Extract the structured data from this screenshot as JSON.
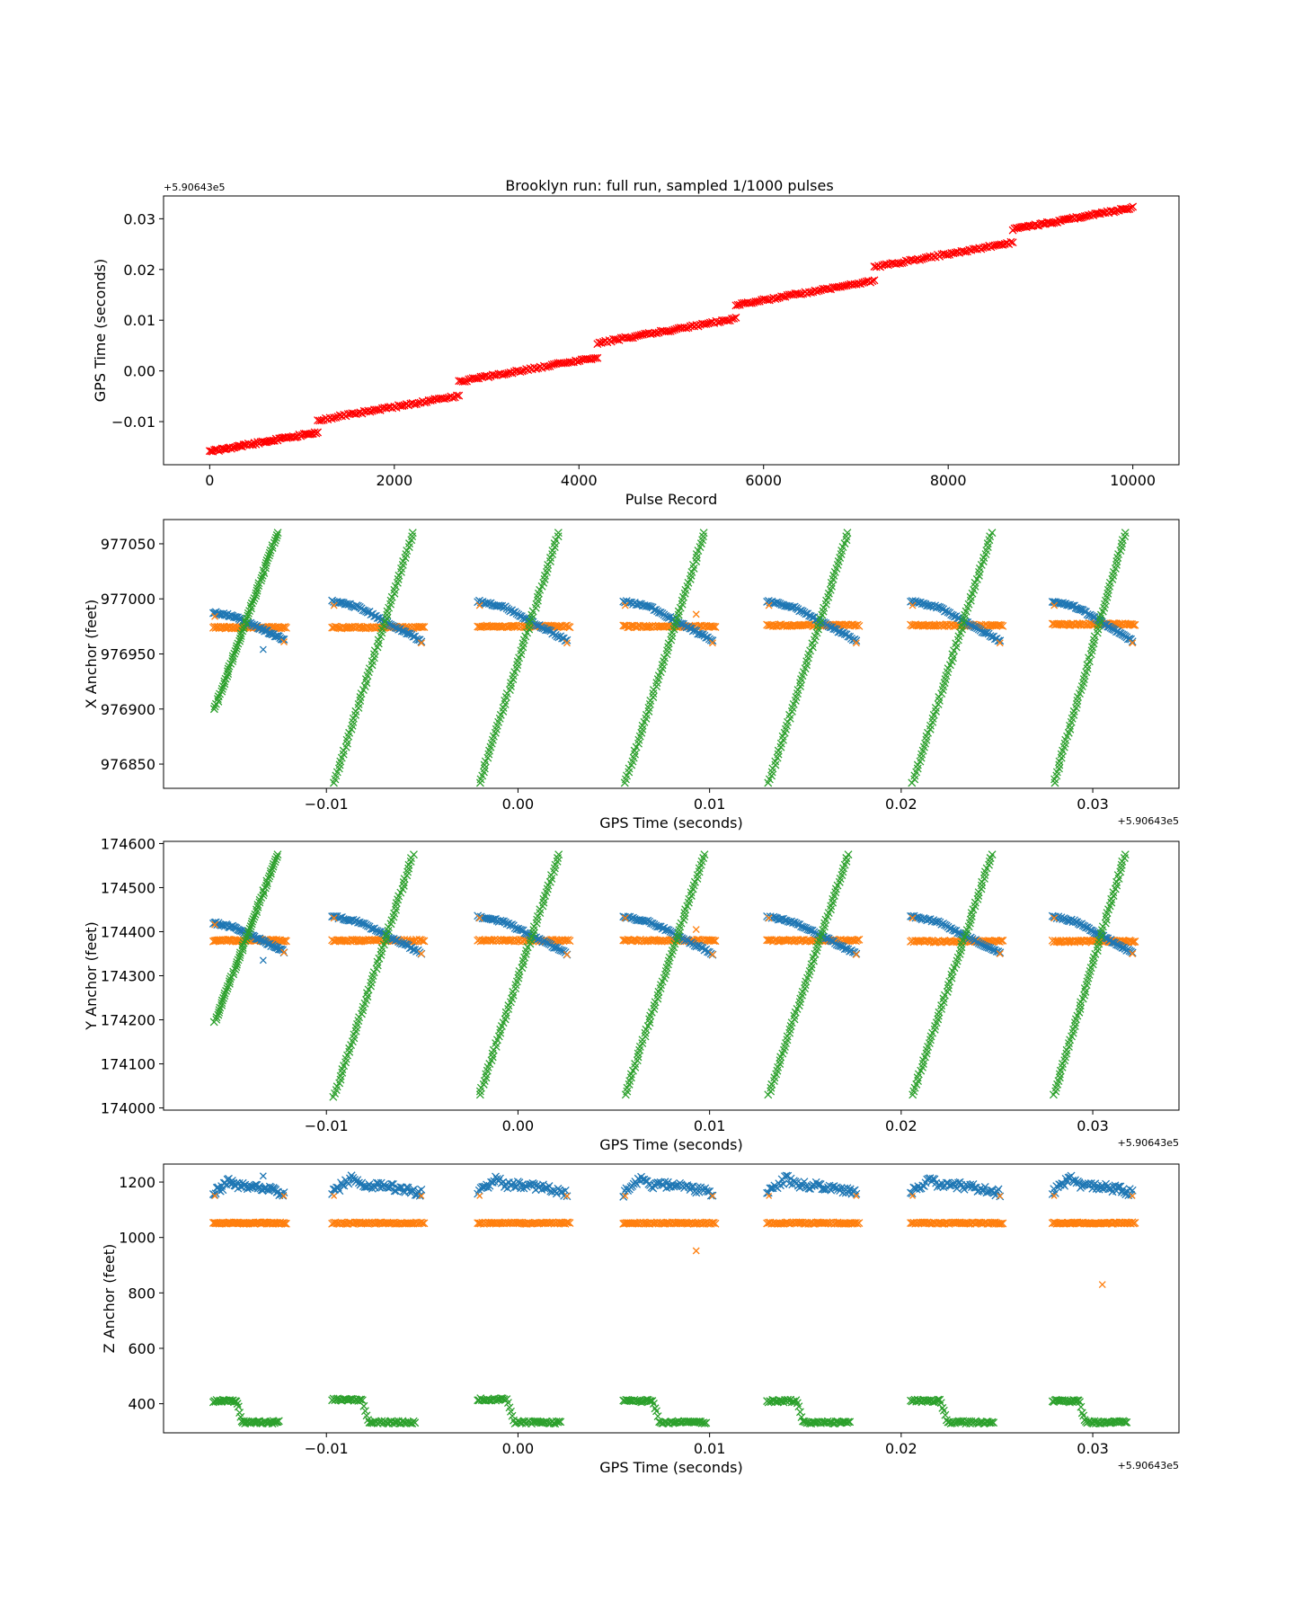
{
  "figure": {
    "title": "Brooklyn run: full run, sampled 1/1000 pulses"
  },
  "chart_data": [
    {
      "type": "scatter",
      "title": "Brooklyn run: full run, sampled 1/1000 pulses",
      "xlabel": "Pulse Record",
      "ylabel": "GPS Time (seconds)",
      "offset_label": "+5.90643e5",
      "offset_position": "top-left",
      "xlim": [
        -500,
        10500
      ],
      "ylim": [
        -0.0185,
        0.0345
      ],
      "xticks": [
        0,
        2000,
        4000,
        6000,
        8000,
        10000
      ],
      "xtick_labels": [
        "0",
        "2000",
        "4000",
        "6000",
        "8000",
        "10000"
      ],
      "yticks": [
        -0.01,
        0.0,
        0.01,
        0.02,
        0.03
      ],
      "ytick_labels": [
        "−0.01",
        "0.00",
        "0.01",
        "0.02",
        "0.03"
      ],
      "marker": "x",
      "grid": false,
      "series": [
        {
          "color": "#ff0000",
          "segments": [
            {
              "x": [
                0,
                1170
              ],
              "y": [
                -0.0159,
                -0.0121
              ]
            },
            {
              "x": [
                1170,
                2700
              ],
              "y": [
                -0.0097,
                -0.0049
              ]
            },
            {
              "x": [
                2700,
                4200
              ],
              "y": [
                -0.0021,
                0.0027
              ]
            },
            {
              "x": [
                4200,
                5700
              ],
              "y": [
                0.0055,
                0.0103
              ]
            },
            {
              "x": [
                5700,
                7200
              ],
              "y": [
                0.013,
                0.0178
              ]
            },
            {
              "x": [
                7200,
                8700
              ],
              "y": [
                0.0205,
                0.0253
              ]
            },
            {
              "x": [
                8700,
                10000
              ],
              "y": [
                0.0279,
                0.0322
              ]
            }
          ]
        }
      ]
    },
    {
      "type": "scatter",
      "xlabel": "GPS Time (seconds)",
      "ylabel": "X Anchor (feet)",
      "offset_label": "+5.90643e5",
      "offset_position": "bottom-right",
      "xlim": [
        -0.0185,
        0.0345
      ],
      "ylim": [
        976828,
        977072
      ],
      "xticks": [
        -0.01,
        0.0,
        0.01,
        0.02,
        0.03
      ],
      "xtick_labels": [
        "−0.01",
        "0.00",
        "0.01",
        "0.02",
        "0.03"
      ],
      "yticks": [
        976850,
        976900,
        976950,
        977000,
        977050
      ],
      "ytick_labels": [
        "976850",
        "976900",
        "976950",
        "977000",
        "977050"
      ],
      "marker": "x",
      "grid": false,
      "groups": [
        {
          "x0": -0.0159,
          "x1": -0.0121,
          "blue_start": 976988,
          "blue_end": 976963,
          "orange": 976974,
          "green_start": 976900,
          "green_end": 977060
        },
        {
          "x0": -0.0097,
          "x1": -0.0049,
          "blue_start": 976998,
          "blue_end": 976962,
          "orange": 976974,
          "green_start": 976833,
          "green_end": 977060
        },
        {
          "x0": -0.0021,
          "x1": 0.0027,
          "blue_start": 976998,
          "blue_end": 976962,
          "orange": 976975,
          "green_start": 976833,
          "green_end": 977060
        },
        {
          "x0": 0.0055,
          "x1": 0.0103,
          "blue_start": 976998,
          "blue_end": 976962,
          "orange": 976975,
          "green_start": 976833,
          "green_end": 977060
        },
        {
          "x0": 0.013,
          "x1": 0.0178,
          "blue_start": 976998,
          "blue_end": 976962,
          "orange": 976976,
          "green_start": 976833,
          "green_end": 977060
        },
        {
          "x0": 0.0205,
          "x1": 0.0253,
          "blue_start": 976998,
          "blue_end": 976962,
          "orange": 976976,
          "green_start": 976833,
          "green_end": 977060
        },
        {
          "x0": 0.0279,
          "x1": 0.0322,
          "blue_start": 976998,
          "blue_end": 976962,
          "orange": 976977,
          "green_start": 976833,
          "green_end": 977060
        }
      ],
      "outliers": [
        {
          "color": "#1f77b4",
          "x": -0.0133,
          "y": 976954
        },
        {
          "color": "#ff7f0e",
          "x": 0.0093,
          "y": 976986
        }
      ],
      "series_colors": {
        "blue": "#1f77b4",
        "orange": "#ff7f0e",
        "green": "#2ca02c"
      }
    },
    {
      "type": "scatter",
      "xlabel": "GPS Time (seconds)",
      "ylabel": "Y Anchor (feet)",
      "offset_label": "+5.90643e5",
      "offset_position": "bottom-right",
      "xlim": [
        -0.0185,
        0.0345
      ],
      "ylim": [
        173995,
        174605
      ],
      "xticks": [
        -0.01,
        0.0,
        0.01,
        0.02,
        0.03
      ],
      "xtick_labels": [
        "−0.01",
        "0.00",
        "0.01",
        "0.02",
        "0.03"
      ],
      "yticks": [
        174000,
        174100,
        174200,
        174300,
        174400,
        174500,
        174600
      ],
      "ytick_labels": [
        "174000",
        "174100",
        "174200",
        "174300",
        "174400",
        "174500",
        "174600"
      ],
      "marker": "x",
      "grid": false,
      "groups": [
        {
          "x0": -0.0159,
          "x1": -0.0121,
          "blue_start": 174420,
          "blue_end": 174355,
          "orange": 174380,
          "green_start": 174195,
          "green_end": 174575
        },
        {
          "x0": -0.0097,
          "x1": -0.0049,
          "blue_start": 174435,
          "blue_end": 174352,
          "orange": 174380,
          "green_start": 174025,
          "green_end": 174575
        },
        {
          "x0": -0.0021,
          "x1": 0.0027,
          "blue_start": 174435,
          "blue_end": 174350,
          "orange": 174380,
          "green_start": 174030,
          "green_end": 174575
        },
        {
          "x0": 0.0055,
          "x1": 0.0103,
          "blue_start": 174435,
          "blue_end": 174350,
          "orange": 174380,
          "green_start": 174030,
          "green_end": 174575
        },
        {
          "x0": 0.013,
          "x1": 0.0178,
          "blue_start": 174435,
          "blue_end": 174350,
          "orange": 174380,
          "green_start": 174030,
          "green_end": 174575
        },
        {
          "x0": 0.0205,
          "x1": 0.0253,
          "blue_start": 174435,
          "blue_end": 174352,
          "orange": 174378,
          "green_start": 174030,
          "green_end": 174575
        },
        {
          "x0": 0.0279,
          "x1": 0.0322,
          "blue_start": 174435,
          "blue_end": 174352,
          "orange": 174378,
          "green_start": 174030,
          "green_end": 174575
        }
      ],
      "outliers": [
        {
          "color": "#1f77b4",
          "x": -0.0133,
          "y": 174335
        },
        {
          "color": "#ff7f0e",
          "x": 0.0093,
          "y": 174405
        }
      ],
      "series_colors": {
        "blue": "#1f77b4",
        "orange": "#ff7f0e",
        "green": "#2ca02c"
      }
    },
    {
      "type": "scatter",
      "xlabel": "GPS Time (seconds)",
      "ylabel": "Z Anchor (feet)",
      "offset_label": "+5.90643e5",
      "offset_position": "bottom-right",
      "xlim": [
        -0.0185,
        0.0345
      ],
      "ylim": [
        295,
        1265
      ],
      "xticks": [
        -0.01,
        0.0,
        0.01,
        0.02,
        0.03
      ],
      "xtick_labels": [
        "−0.01",
        "0.00",
        "0.01",
        "0.02",
        "0.03"
      ],
      "yticks": [
        400,
        600,
        800,
        1000,
        1200
      ],
      "ytick_labels": [
        "400",
        "600",
        "800",
        "1000",
        "1200"
      ],
      "marker": "x",
      "grid": false,
      "groups": [
        {
          "x0": -0.0159,
          "x1": -0.0121,
          "blue_peak": 1200,
          "blue_mid": 1185,
          "blue_end": 1160,
          "orange": 1052,
          "green_high": 410,
          "green_low": 333
        },
        {
          "x0": -0.0097,
          "x1": -0.0049,
          "blue_peak": 1215,
          "blue_mid": 1190,
          "blue_end": 1160,
          "orange": 1052,
          "green_high": 415,
          "green_low": 333
        },
        {
          "x0": -0.0021,
          "x1": 0.0027,
          "blue_peak": 1215,
          "blue_mid": 1190,
          "blue_end": 1160,
          "orange": 1052,
          "green_high": 415,
          "green_low": 333
        },
        {
          "x0": 0.0055,
          "x1": 0.0103,
          "blue_peak": 1215,
          "blue_mid": 1190,
          "blue_end": 1160,
          "orange": 1052,
          "green_high": 410,
          "green_low": 333
        },
        {
          "x0": 0.013,
          "x1": 0.0178,
          "blue_peak": 1215,
          "blue_mid": 1190,
          "blue_end": 1160,
          "orange": 1052,
          "green_high": 410,
          "green_low": 333
        },
        {
          "x0": 0.0205,
          "x1": 0.0253,
          "blue_peak": 1215,
          "blue_mid": 1190,
          "blue_end": 1160,
          "orange": 1052,
          "green_high": 410,
          "green_low": 333
        },
        {
          "x0": 0.0279,
          "x1": 0.0322,
          "blue_peak": 1215,
          "blue_mid": 1190,
          "blue_end": 1160,
          "orange": 1052,
          "green_high": 410,
          "green_low": 333
        }
      ],
      "outliers": [
        {
          "color": "#1f77b4",
          "x": -0.0133,
          "y": 1222
        },
        {
          "color": "#ff7f0e",
          "x": 0.0093,
          "y": 952
        },
        {
          "color": "#ff7f0e",
          "x": 0.0305,
          "y": 830
        }
      ],
      "series_colors": {
        "blue": "#1f77b4",
        "orange": "#ff7f0e",
        "green": "#2ca02c"
      }
    }
  ]
}
